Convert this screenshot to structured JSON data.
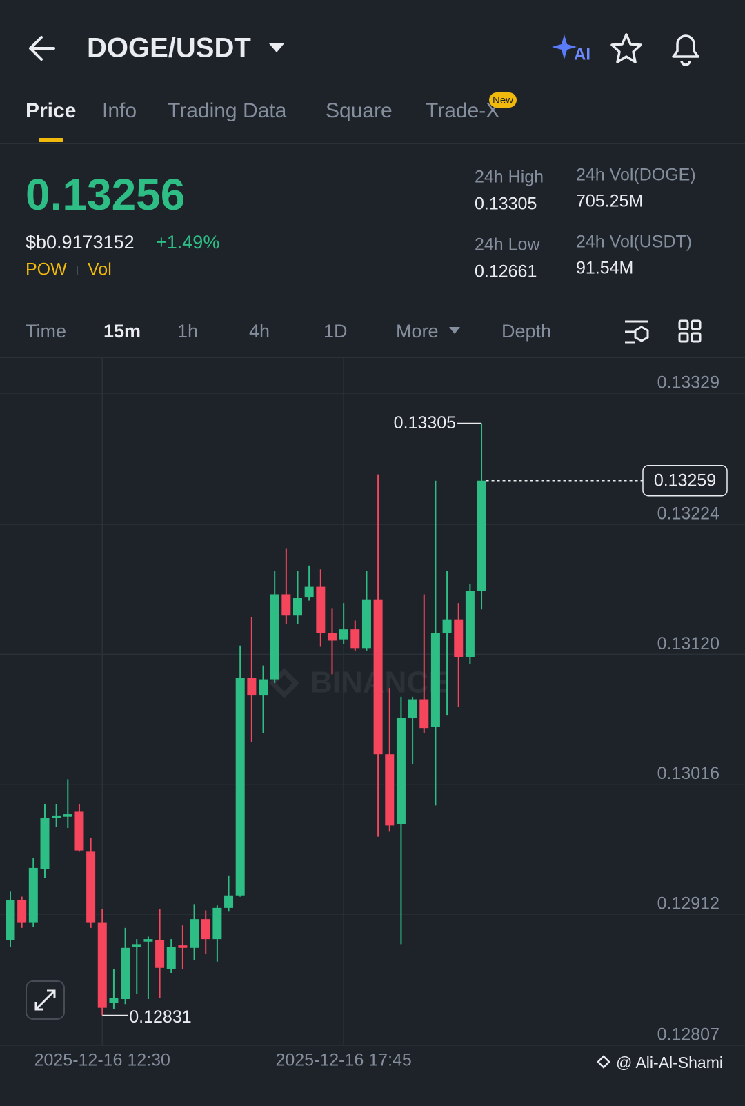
{
  "header": {
    "pair": "DOGE/USDT",
    "ai_label": "AI"
  },
  "tabs": [
    "Price",
    "Info",
    "Trading Data",
    "Square",
    "Trade-X"
  ],
  "new_badge": "New",
  "ticker": {
    "price": "0.13256",
    "fiat_price": "$b0.9173152",
    "change": "+1.49%",
    "tags": [
      "POW",
      "Vol"
    ],
    "stats": [
      {
        "label": "24h High",
        "value": "0.13305"
      },
      {
        "label": "24h Low",
        "value": "0.12661"
      },
      {
        "label": "24h Vol(DOGE)",
        "value": "705.25M"
      },
      {
        "label": "24h Vol(USDT)",
        "value": "91.54M"
      }
    ]
  },
  "intervals": [
    "Time",
    "15m",
    "1h",
    "4h",
    "1D",
    "More",
    "Depth"
  ],
  "credit": "@ Ali-Al-Shami",
  "chart_data": {
    "type": "candlestick",
    "watermark": "BINANCE",
    "up_color": "#2ebd85",
    "down_color": "#f6465d",
    "x": [
      null,
      null,
      null,
      null,
      null,
      null,
      null,
      null,
      "2025-12-16 12:30",
      null,
      null,
      null,
      null,
      null,
      null,
      null,
      null,
      null,
      null,
      null,
      null,
      null,
      null,
      null,
      null,
      null,
      null,
      null,
      null,
      "2025-12-16 17:45",
      null,
      null,
      null,
      null,
      null,
      null,
      null,
      null,
      null,
      null,
      null,
      null
    ],
    "open": [
      0.12891,
      0.12923,
      0.12905,
      0.12948,
      0.12989,
      0.1299,
      0.12994,
      0.12962,
      0.12905,
      0.12841,
      0.12844,
      0.12886,
      0.1289,
      0.12891,
      0.12868,
      0.12887,
      0.12885,
      0.12908,
      0.12892,
      0.12917,
      0.12927,
      0.13101,
      0.13087,
      0.131,
      0.13168,
      0.13151,
      0.13166,
      0.13174,
      0.13137,
      0.13132,
      0.1314,
      0.13125,
      0.13164,
      0.1304,
      0.12984,
      0.13069,
      0.13084,
      0.13062,
      0.13137,
      0.13148,
      0.13118,
      0.13171
    ],
    "high": [
      0.1293,
      0.12926,
      0.12957,
      0.13,
      0.13,
      0.1302,
      0.13,
      0.12973,
      0.12916,
      0.12868,
      0.12901,
      0.12892,
      0.12894,
      0.12916,
      0.12892,
      0.12903,
      0.1292,
      0.12915,
      0.12919,
      0.12943,
      0.13127,
      0.1315,
      0.13111,
      0.13187,
      0.13205,
      0.13187,
      0.13191,
      0.13188,
      0.13157,
      0.13161,
      0.13147,
      0.13187,
      0.13264,
      0.13093,
      0.13086,
      0.13086,
      0.13168,
      0.13259,
      0.13187,
      0.13161,
      0.13176,
      0.13305
    ],
    "low": [
      0.12886,
      0.12901,
      0.12902,
      0.12941,
      0.12982,
      0.12981,
      0.12962,
      0.12901,
      0.12831,
      0.12836,
      0.1284,
      0.12848,
      0.12844,
      0.12845,
      0.12865,
      0.12868,
      0.12875,
      0.1288,
      0.12874,
      0.12914,
      0.12926,
      0.1305,
      0.13057,
      0.13097,
      0.13144,
      0.13144,
      0.13163,
      0.13126,
      0.13104,
      0.13128,
      0.13123,
      0.13123,
      0.12974,
      0.12978,
      0.12888,
      0.13032,
      0.13057,
      0.12999,
      0.13071,
      0.13078,
      0.13112,
      0.13156
    ],
    "close": [
      0.12923,
      0.12905,
      0.12949,
      0.12989,
      0.12991,
      0.12992,
      0.12963,
      0.12905,
      0.12837,
      0.12845,
      0.12885,
      0.12888,
      0.12892,
      0.12869,
      0.12886,
      0.12885,
      0.12908,
      0.12892,
      0.12917,
      0.12927,
      0.13101,
      0.13087,
      0.131,
      0.13168,
      0.13151,
      0.13165,
      0.13174,
      0.13137,
      0.13131,
      0.1314,
      0.13125,
      0.13164,
      0.1304,
      0.12983,
      0.13069,
      0.13084,
      0.13061,
      0.13137,
      0.13148,
      0.13118,
      0.13171,
      0.13259
    ],
    "ylim": [
      0.12807,
      0.13329
    ],
    "yticks": [
      0.13329,
      0.13224,
      {
        "value": 0.1312,
        "label": "0.13120"
      },
      0.13016,
      0.12912,
      0.12807
    ],
    "last_price": 0.13259,
    "high_label": 0.13305,
    "low_label": 0.12831,
    "grid": true
  }
}
